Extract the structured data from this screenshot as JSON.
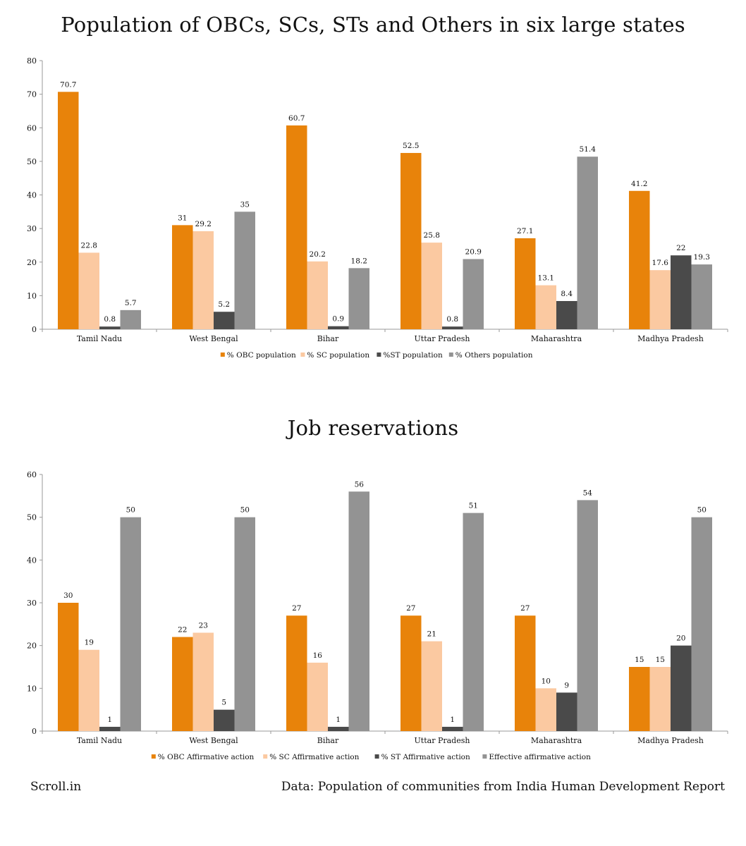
{
  "charts": [
    {
      "title": "Population of OBCs, SCs, STs and Others in six large states"
    },
    {
      "title": "Job reservations"
    }
  ],
  "footer": {
    "brand": "Scroll.in",
    "source": "Data: Population of communities from India Human Development Report"
  },
  "chart_data": [
    {
      "type": "bar",
      "title": "Population of OBCs, SCs, STs and Others in six large states",
      "xlabel": "",
      "ylabel": "",
      "ylim": [
        0,
        80
      ],
      "yticks": [
        0,
        10,
        20,
        30,
        40,
        50,
        60,
        70,
        80
      ],
      "grid": false,
      "legend_position": "bottom",
      "categories": [
        "Tamil Nadu",
        "West Bengal",
        "Bihar",
        "Uttar Pradesh",
        "Maharashtra",
        "Madhya Pradesh"
      ],
      "series": [
        {
          "name": "% OBC population",
          "color": "#E8830A",
          "values": [
            70.7,
            31,
            60.7,
            52.5,
            27.1,
            41.2
          ]
        },
        {
          "name": "% SC population",
          "color": "#FBC9A1",
          "values": [
            22.8,
            29.2,
            20.2,
            25.8,
            13.1,
            17.6
          ]
        },
        {
          "name": "%ST population",
          "color": "#4A4A4A",
          "values": [
            0.8,
            5.2,
            0.9,
            0.8,
            8.4,
            22
          ]
        },
        {
          "name": "% Others population",
          "color": "#939393",
          "values": [
            5.7,
            35,
            18.2,
            20.9,
            51.4,
            19.3
          ]
        }
      ]
    },
    {
      "type": "bar",
      "title": "Job reservations",
      "xlabel": "",
      "ylabel": "",
      "ylim": [
        0,
        60
      ],
      "yticks": [
        0,
        10,
        20,
        30,
        40,
        50,
        60
      ],
      "grid": false,
      "legend_position": "bottom",
      "categories": [
        "Tamil Nadu",
        "West Bengal",
        "Bihar",
        "Uttar Pradesh",
        "Maharashtra",
        "Madhya Pradesh"
      ],
      "series": [
        {
          "name": "% OBC Affirmative action",
          "color": "#E8830A",
          "values": [
            30,
            22,
            27,
            27,
            27,
            15
          ]
        },
        {
          "name": "% SC Affirmative  action",
          "color": "#FBC9A1",
          "values": [
            19,
            23,
            16,
            21,
            10,
            15
          ]
        },
        {
          "name": "% ST Affirmative action",
          "color": "#4A4A4A",
          "values": [
            1,
            5,
            1,
            1,
            9,
            20
          ]
        },
        {
          "name": "Effective affirmative action",
          "color": "#939393",
          "values": [
            50,
            50,
            56,
            51,
            54,
            50
          ]
        }
      ]
    }
  ]
}
